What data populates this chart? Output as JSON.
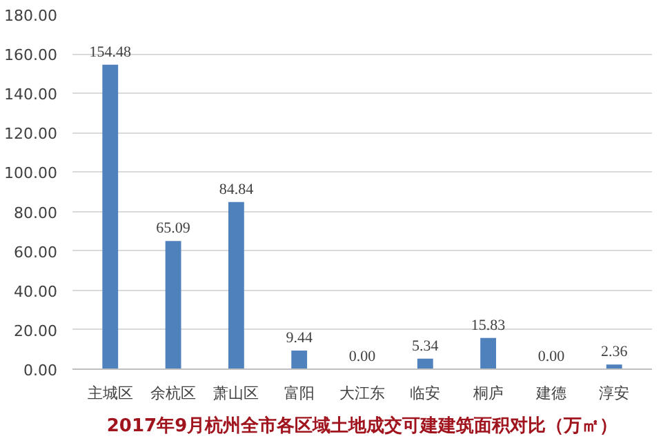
{
  "chart_data": {
    "type": "bar",
    "title": "2017年9月杭州全市各区域土地成交可建建筑面积对比（万㎡）",
    "categories": [
      "主城区",
      "余杭区",
      "萧山区",
      "富阳",
      "大江东",
      "临安",
      "桐庐",
      "建德",
      "淳安"
    ],
    "values": [
      154.48,
      65.09,
      84.84,
      9.44,
      0.0,
      5.34,
      15.83,
      0.0,
      2.36
    ],
    "value_labels": [
      "154.48",
      "65.09",
      "84.84",
      "9.44",
      "0.00",
      "5.34",
      "15.83",
      "0.00",
      "2.36"
    ],
    "color": "#4f81bd",
    "ylim": [
      0,
      180
    ],
    "yticks": [
      {
        "value": 0,
        "label": "0.00"
      },
      {
        "value": 20,
        "label": "20.00"
      },
      {
        "value": 40,
        "label": "40.00"
      },
      {
        "value": 60,
        "label": "60.00"
      },
      {
        "value": 80,
        "label": "80.00"
      },
      {
        "value": 100,
        "label": "100.00"
      },
      {
        "value": 120,
        "label": "120.00"
      },
      {
        "value": 140,
        "label": "140.00"
      },
      {
        "value": 160,
        "label": "160.00"
      },
      {
        "value": 180,
        "label": "180.00"
      }
    ],
    "grid": "y"
  }
}
